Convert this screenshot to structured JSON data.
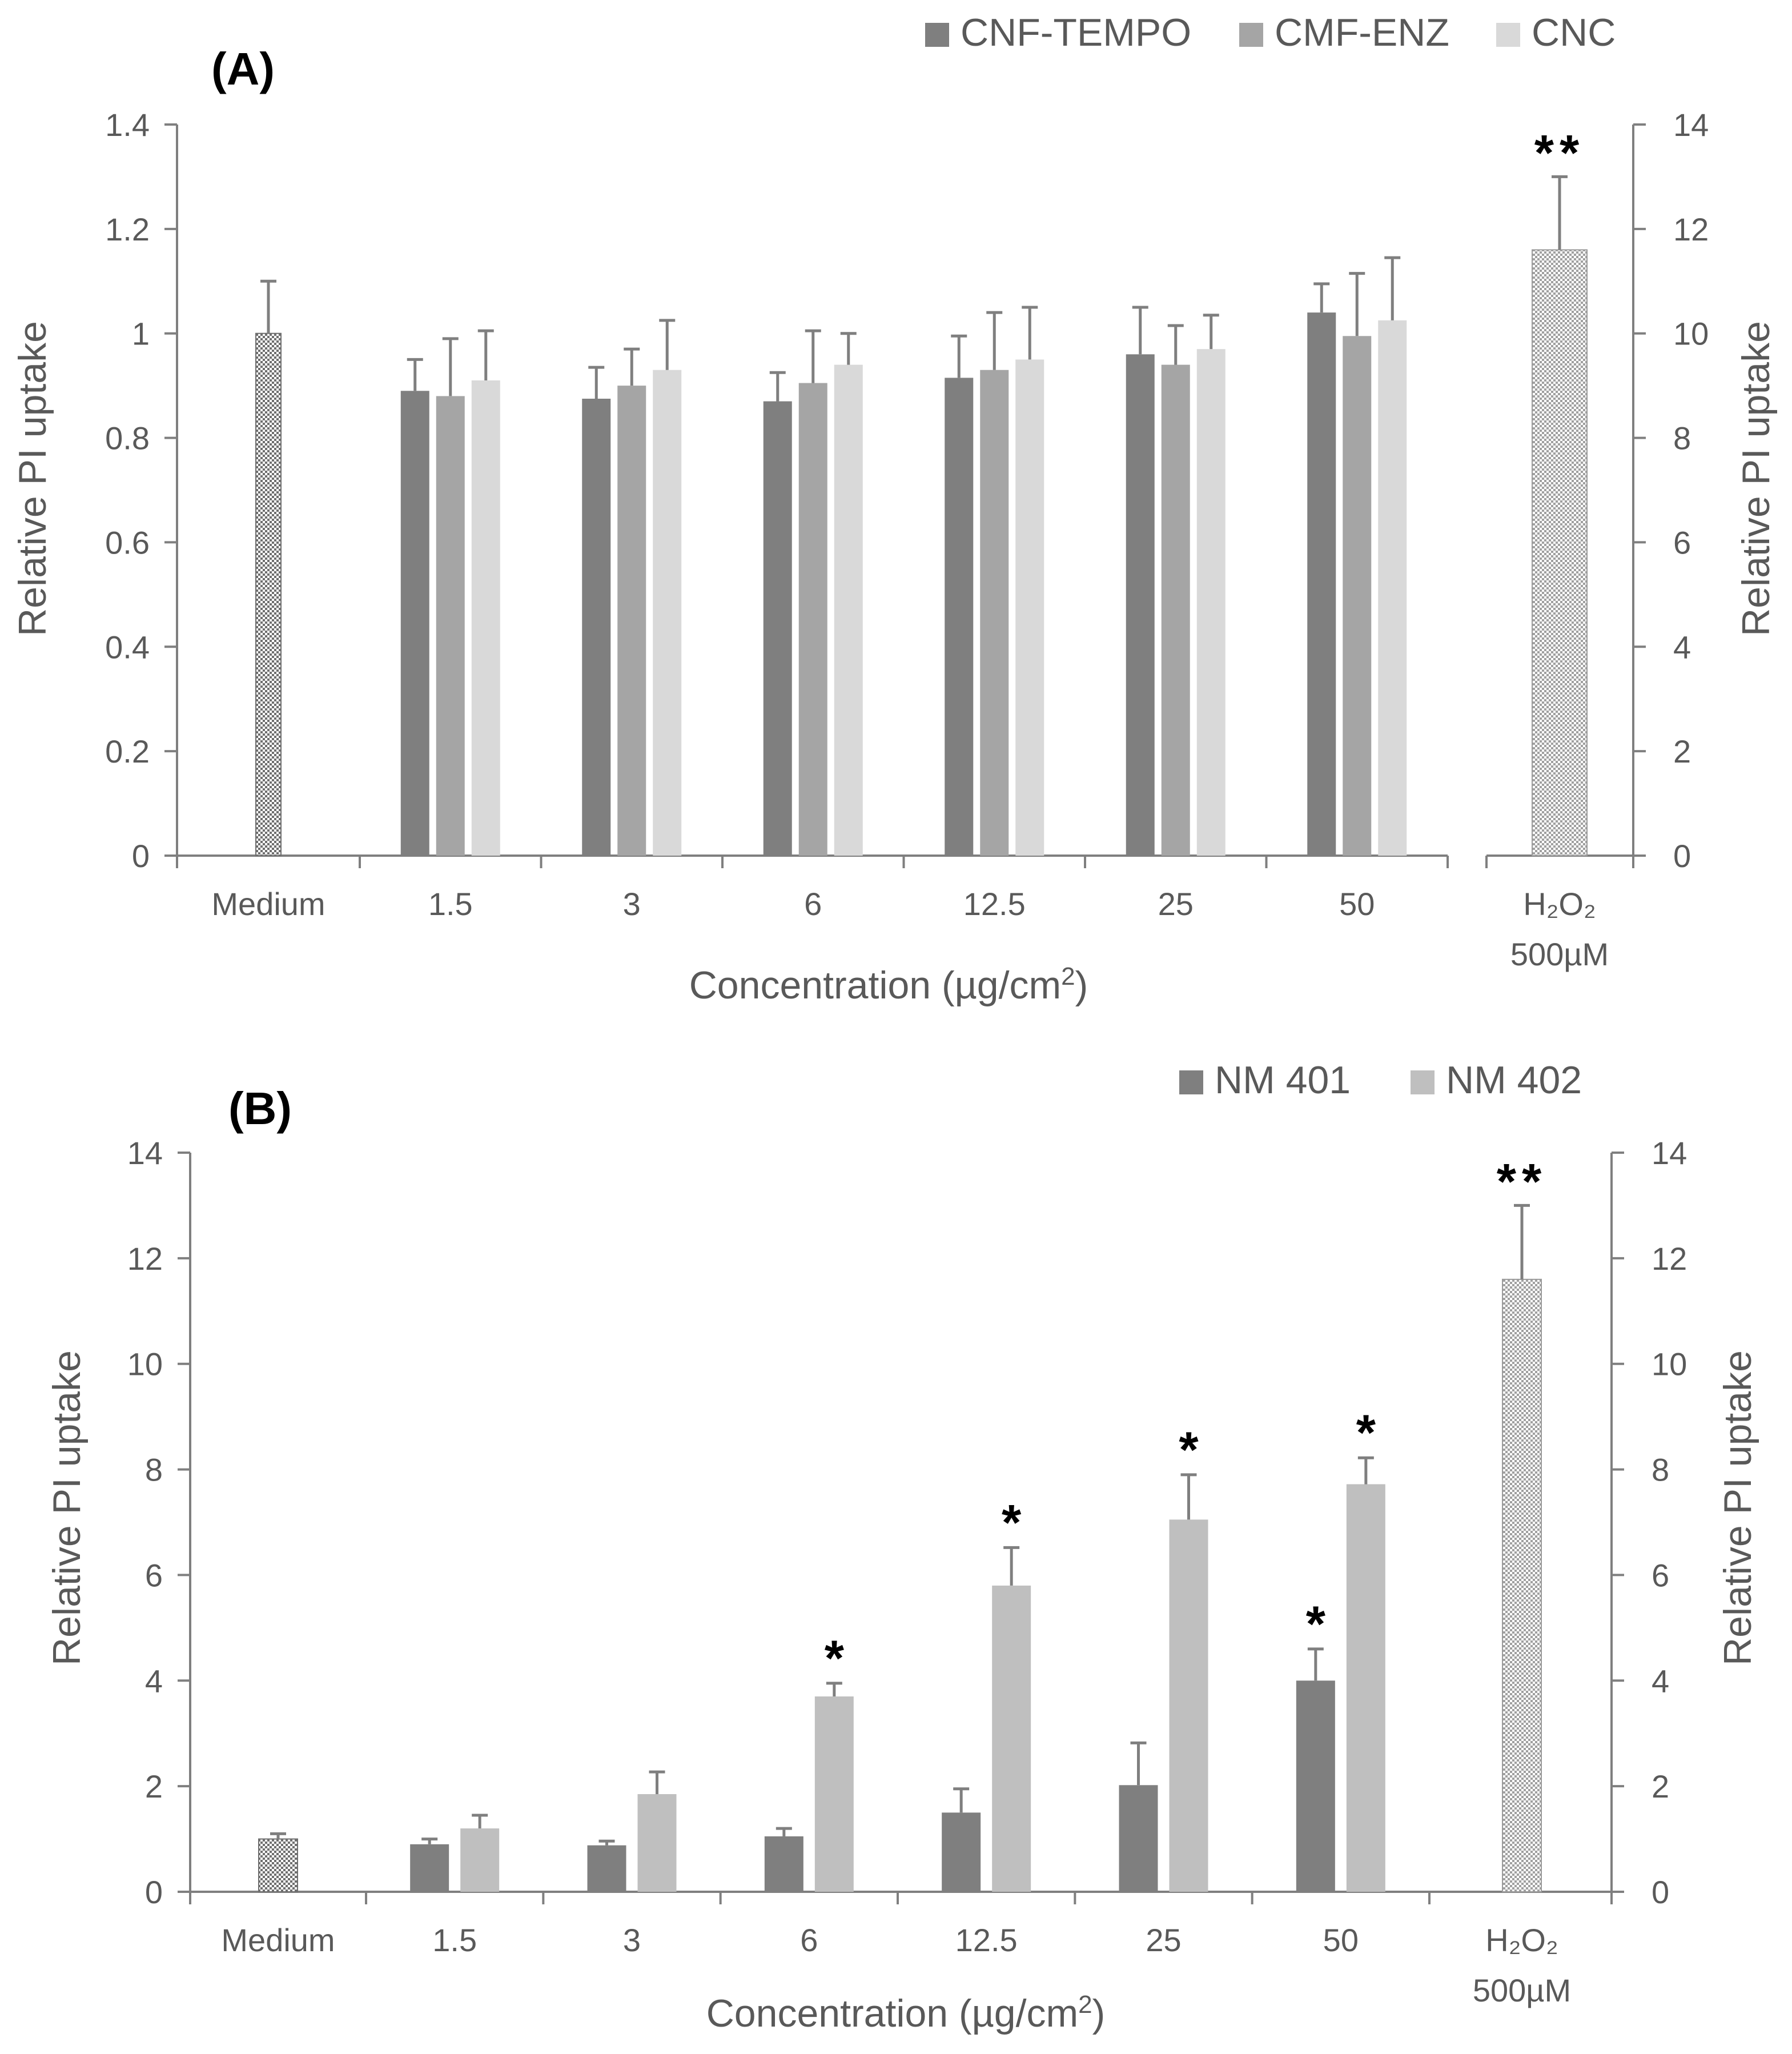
{
  "figure": {
    "panels": [
      {
        "panel_label": "(A)",
        "chart_data": {
          "type": "bar",
          "xlabel": "Concentration (µg/cm2)",
          "xlabel_main": "Concentration (µg/cm",
          "xlabel_sup": "2",
          "xlabel_end": ")",
          "ylabel_left": "Relative PI uptake",
          "ylabel_right": "Relative PI uptake",
          "ylim_left": [
            0,
            1.4
          ],
          "ylim_right": [
            0,
            14
          ],
          "yticks_left": [
            "0",
            "0.2",
            "0.4",
            "0.6",
            "0.8",
            "1",
            "1.2",
            "1.4"
          ],
          "yticks_right": [
            "0",
            "2",
            "4",
            "6",
            "8",
            "10",
            "12",
            "14"
          ],
          "categories": [
            "1.5",
            "3",
            "6",
            "12.5",
            "25",
            "50"
          ],
          "series": [
            {
              "name": "CNF-TEMPO",
              "color": "#7f7f7f",
              "values": [
                0.89,
                0.875,
                0.87,
                0.915,
                0.96,
                1.04
              ],
              "errors": [
                0.06,
                0.06,
                0.055,
                0.08,
                0.09,
                0.055
              ]
            },
            {
              "name": "CMF-ENZ",
              "color": "#a5a5a5",
              "values": [
                0.88,
                0.9,
                0.905,
                0.93,
                0.94,
                0.995
              ],
              "errors": [
                0.11,
                0.07,
                0.1,
                0.11,
                0.075,
                0.12
              ]
            },
            {
              "name": "CNC",
              "color": "#d9d9d9",
              "values": [
                0.91,
                0.93,
                0.94,
                0.95,
                0.97,
                1.025
              ],
              "errors": [
                0.095,
                0.095,
                0.06,
                0.1,
                0.065,
                0.12
              ]
            }
          ],
          "medium": {
            "label": "Medium",
            "value": 1.0,
            "error": 0.1
          },
          "h2o2": {
            "label_line1": "H₂O₂",
            "label_line2": "500µM",
            "value_right_axis": 11.6,
            "error_right_axis": 1.4,
            "significance": "**"
          },
          "significance": []
        }
      },
      {
        "panel_label": "(B)",
        "chart_data": {
          "type": "bar",
          "xlabel": "Concentration (µg/cm2)",
          "xlabel_main": "Concentration (µg/cm",
          "xlabel_sup": "2",
          "xlabel_end": ")",
          "ylabel_left": "Relative PI uptake",
          "ylabel_right": "Relative PI uptake",
          "ylim_left": [
            0,
            14
          ],
          "ylim_right": [
            0,
            14
          ],
          "yticks_left": [
            "0",
            "2",
            "4",
            "6",
            "8",
            "10",
            "12",
            "14"
          ],
          "yticks_right": [
            "0",
            "2",
            "4",
            "6",
            "8",
            "10",
            "12",
            "14"
          ],
          "categories": [
            "1.5",
            "3",
            "6",
            "12.5",
            "25",
            "50"
          ],
          "series": [
            {
              "name": "NM 401",
              "color": "#7f7f7f",
              "values": [
                0.9,
                0.88,
                1.05,
                1.5,
                2.02,
                4.0
              ],
              "errors": [
                0.1,
                0.08,
                0.15,
                0.45,
                0.8,
                0.6
              ],
              "significance": [
                "",
                "",
                "",
                "",
                "",
                "*"
              ]
            },
            {
              "name": "NM 402",
              "color": "#bfbfbf",
              "values": [
                1.2,
                1.85,
                3.7,
                5.8,
                7.05,
                7.72
              ],
              "errors": [
                0.25,
                0.42,
                0.25,
                0.72,
                0.85,
                0.5
              ],
              "significance": [
                "",
                "",
                "*",
                "*",
                "*",
                "*"
              ]
            }
          ],
          "medium": {
            "label": "Medium",
            "value": 1.0,
            "error": 0.1
          },
          "h2o2": {
            "label_line1": "H₂O₂",
            "label_line2": "500µM",
            "value_right_axis": 11.6,
            "error_right_axis": 1.4,
            "significance": "**"
          }
        }
      }
    ]
  }
}
